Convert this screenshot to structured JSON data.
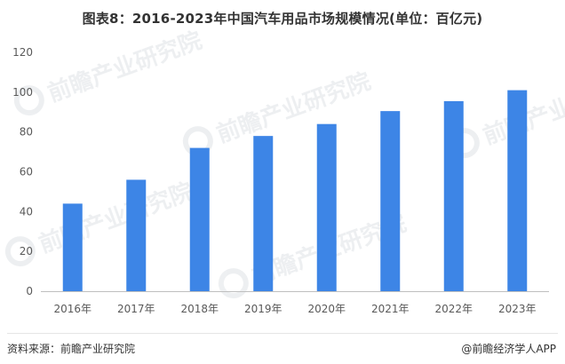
{
  "title": "图表8：2016-2023年中国汽车用品市场规模情况(单位：百亿元)",
  "watermark_text": "前瞻产业研究院",
  "source": "资料来源：前瞻产业研究院",
  "credit": "@前瞻经济学人APP",
  "colors": {
    "bar": "#3d85e6",
    "axis": "#bfbfbf",
    "tick_text": "#595959",
    "watermark": "#5a6a80"
  },
  "chart_data": {
    "type": "bar",
    "title": "图表8：2016-2023年中国汽车用品市场规模情况(单位：百亿元)",
    "xlabel": "",
    "ylabel": "",
    "categories": [
      "2016年",
      "2017年",
      "2018年",
      "2019年",
      "2020年",
      "2021年",
      "2022年",
      "2023年"
    ],
    "values": [
      44,
      56,
      72,
      78,
      84,
      90.5,
      95.5,
      101
    ],
    "ylim": [
      0,
      120
    ],
    "yticks": [
      0,
      20,
      40,
      60,
      80,
      100,
      120
    ],
    "grid": false,
    "legend": "none"
  }
}
